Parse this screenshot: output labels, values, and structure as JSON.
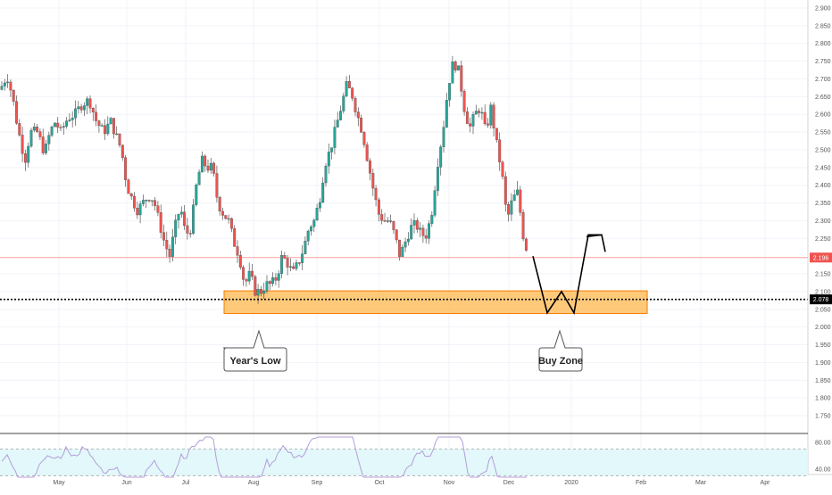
{
  "chart_data": {
    "type": "candlestick",
    "title": "",
    "price_axis": {
      "ticks": [
        {
          "label": "2.900",
          "value": 2.9
        },
        {
          "label": "2.850",
          "value": 2.85
        },
        {
          "label": "2.800",
          "value": 2.8
        },
        {
          "label": "2.750",
          "value": 2.75
        },
        {
          "label": "2.700",
          "value": 2.7
        },
        {
          "label": "2.650",
          "value": 2.65
        },
        {
          "label": "2.600",
          "value": 2.6
        },
        {
          "label": "2.550",
          "value": 2.55
        },
        {
          "label": "2.500",
          "value": 2.5
        },
        {
          "label": "2.450",
          "value": 2.45
        },
        {
          "label": "2.400",
          "value": 2.4
        },
        {
          "label": "2.350",
          "value": 2.35
        },
        {
          "label": "2.300",
          "value": 2.3
        },
        {
          "label": "2.250",
          "value": 2.25
        },
        {
          "label": "2.150",
          "value": 2.15
        },
        {
          "label": "2.100",
          "value": 2.1
        },
        {
          "label": "2.050",
          "value": 2.05
        },
        {
          "label": "2.000",
          "value": 2.0
        },
        {
          "label": "1.950",
          "value": 1.95
        },
        {
          "label": "1.900",
          "value": 1.9
        },
        {
          "label": "1.850",
          "value": 1.85
        },
        {
          "label": "1.800",
          "value": 1.8
        },
        {
          "label": "1.750",
          "value": 1.75
        }
      ],
      "range": [
        1.727,
        2.918
      ]
    },
    "time_axis": {
      "labels": [
        "May",
        "Jun",
        "Jul",
        "Aug",
        "Sep",
        "Oct",
        "Nov",
        "Dec",
        "2020",
        "Feb",
        "Mar",
        "Apr"
      ]
    },
    "current_price": {
      "label": "2.196",
      "value": 2.196,
      "color": "#ef5350"
    },
    "support_line": {
      "label": "2.078",
      "value": 2.078,
      "style": "dotted",
      "color": "#000000"
    },
    "buy_zone_box": {
      "low": 2.038,
      "high": 2.102,
      "color": "#ffb74d"
    },
    "projection_path": [
      2.2,
      2.04,
      2.1,
      2.04,
      2.26,
      2.21
    ],
    "annotations": [
      {
        "id": "years-low",
        "text": "Year's Low"
      },
      {
        "id": "buy-zone",
        "text": "Buy Zone"
      }
    ],
    "up_color": "#26a69a",
    "down_color": "#ef5350",
    "rsi": {
      "ticks": [
        {
          "label": "80.00",
          "value": 80
        },
        {
          "label": "40.00",
          "value": 40
        }
      ],
      "band": [
        30,
        70
      ],
      "range": [
        20,
        95
      ],
      "line_color": "#b39ddb"
    }
  }
}
